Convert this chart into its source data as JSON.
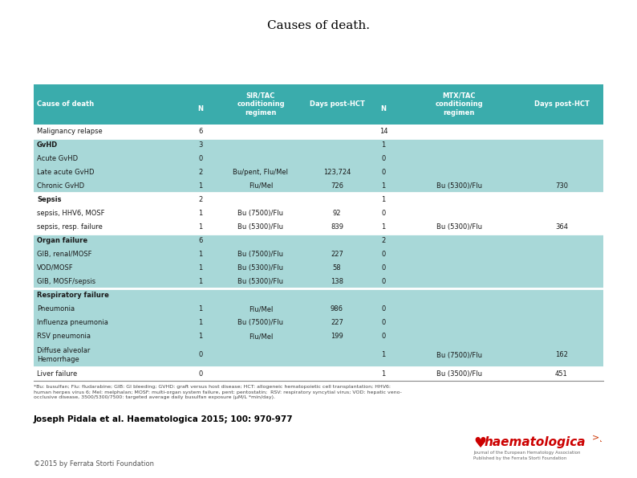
{
  "title": "Causes of death.",
  "title_fontsize": 11,
  "header_bg": "#3AACAC",
  "header_text_color": "#FFFFFF",
  "row_bg_light": "#A8D8D8",
  "row_bg_white": "#FFFFFF",
  "text_color": "#1a1a1a",
  "footnote_text": "*Bu: busulfan; Flu: fludarabine; GIB: GI bleeding; GVHD: graft versus host disease; HCT: allogeneic hematopoietic cell transplantation; HHV6: human herpes virus 6; Mel: melphalan; MOSF: multi-organ system failure, pent: pentostatin;  RSV: respiratory syncytial virus; VOD: hepatic veno-occlusive disease, 3500/5300/7500: targeted average daily busulfan exposure (μM/L *min/day).",
  "citation": "Joseph Pidala et al. Haematologica 2015; 100: 970-977",
  "copyright": "©2015 by Ferrata Storti Foundation",
  "rows": [
    {
      "cause": "Malignancy relapse",
      "n_sir": "6",
      "sir_reg": "",
      "sir_days": "",
      "n_mtx": "14",
      "mtx_reg": "",
      "mtx_days": "",
      "group": "malignancy",
      "bold_cause": false
    },
    {
      "cause": "GvHD",
      "n_sir": "3",
      "sir_reg": "",
      "sir_days": "",
      "n_mtx": "1",
      "mtx_reg": "",
      "mtx_days": "",
      "group": "gvhd",
      "bold_cause": true
    },
    {
      "cause": "Acute GvHD",
      "n_sir": "0",
      "sir_reg": "",
      "sir_days": "",
      "n_mtx": "0",
      "mtx_reg": "",
      "mtx_days": "",
      "group": "gvhd",
      "bold_cause": false
    },
    {
      "cause": "Late acute GvHD",
      "n_sir": "2",
      "sir_reg": "Bu/pent, Flu/Mel",
      "sir_days": "123,724",
      "n_mtx": "0",
      "mtx_reg": "",
      "mtx_days": "",
      "group": "gvhd",
      "bold_cause": false
    },
    {
      "cause": "Chronic GvHD",
      "n_sir": "1",
      "sir_reg": "Flu/Mel",
      "sir_days": "726",
      "n_mtx": "1",
      "mtx_reg": "Bu (5300)/Flu",
      "mtx_days": "730",
      "group": "gvhd",
      "bold_cause": false
    },
    {
      "cause": "Sepsis",
      "n_sir": "2",
      "sir_reg": "",
      "sir_days": "",
      "n_mtx": "1",
      "mtx_reg": "",
      "mtx_days": "",
      "group": "sepsis",
      "bold_cause": true
    },
    {
      "cause": "sepsis, HHV6, MOSF",
      "n_sir": "1",
      "sir_reg": "Bu (7500)/Flu",
      "sir_days": "92",
      "n_mtx": "0",
      "mtx_reg": "",
      "mtx_days": "",
      "group": "sepsis",
      "bold_cause": false
    },
    {
      "cause": "sepsis, resp. failure",
      "n_sir": "1",
      "sir_reg": "Bu (5300)/Flu",
      "sir_days": "839",
      "n_mtx": "1",
      "mtx_reg": "Bu (5300)/Flu",
      "mtx_days": "364",
      "group": "sepsis",
      "bold_cause": false
    },
    {
      "cause": "Organ failure",
      "n_sir": "6",
      "sir_reg": "",
      "sir_days": "",
      "n_mtx": "2",
      "mtx_reg": "",
      "mtx_days": "",
      "group": "organ",
      "bold_cause": true
    },
    {
      "cause": "GIB, renal/MOSF",
      "n_sir": "1",
      "sir_reg": "Bu (7500)/Flu",
      "sir_days": "227",
      "n_mtx": "0",
      "mtx_reg": "",
      "mtx_days": "",
      "group": "organ",
      "bold_cause": false
    },
    {
      "cause": "VOD/MOSF",
      "n_sir": "1",
      "sir_reg": "Bu (5300)/Flu",
      "sir_days": "58",
      "n_mtx": "0",
      "mtx_reg": "",
      "mtx_days": "",
      "group": "organ",
      "bold_cause": false
    },
    {
      "cause": "GIB, MOSF/sepsis",
      "n_sir": "1",
      "sir_reg": "Bu (5300)/Flu",
      "sir_days": "138",
      "n_mtx": "0",
      "mtx_reg": "",
      "mtx_days": "",
      "group": "organ",
      "bold_cause": false
    },
    {
      "cause": "Respiratory failure",
      "n_sir": "",
      "sir_reg": "",
      "sir_days": "",
      "n_mtx": "",
      "mtx_reg": "",
      "mtx_days": "",
      "group": "respiratory",
      "bold_cause": true
    },
    {
      "cause": "Pneumonia",
      "n_sir": "1",
      "sir_reg": "Flu/Mel",
      "sir_days": "986",
      "n_mtx": "0",
      "mtx_reg": "",
      "mtx_days": "",
      "group": "respiratory",
      "bold_cause": false
    },
    {
      "cause": "Influenza pneumonia",
      "n_sir": "1",
      "sir_reg": "Bu (7500)/Flu",
      "sir_days": "227",
      "n_mtx": "0",
      "mtx_reg": "",
      "mtx_days": "",
      "group": "respiratory",
      "bold_cause": false
    },
    {
      "cause": "RSV pneumonia",
      "n_sir": "1",
      "sir_reg": "Flu/Mel",
      "sir_days": "199",
      "n_mtx": "0",
      "mtx_reg": "",
      "mtx_days": "",
      "group": "respiratory",
      "bold_cause": false
    },
    {
      "cause": "Diffuse alveolar\nHemorrhage",
      "n_sir": "0",
      "sir_reg": "",
      "sir_days": "",
      "n_mtx": "1",
      "mtx_reg": "Bu (7500)/Flu",
      "mtx_days": "162",
      "group": "respiratory",
      "bold_cause": false
    },
    {
      "cause": "Liver failure",
      "n_sir": "0",
      "sir_reg": "",
      "sir_days": "",
      "n_mtx": "1",
      "mtx_reg": "Bu (3500)/Flu",
      "mtx_days": "451",
      "group": "liver",
      "bold_cause": false
    }
  ],
  "group_colors": {
    "malignancy": "#FFFFFF",
    "gvhd": "#A8D8D8",
    "sepsis": "#FFFFFF",
    "organ": "#A8D8D8",
    "respiratory": "#A8D8D8",
    "liver": "#FFFFFF"
  }
}
